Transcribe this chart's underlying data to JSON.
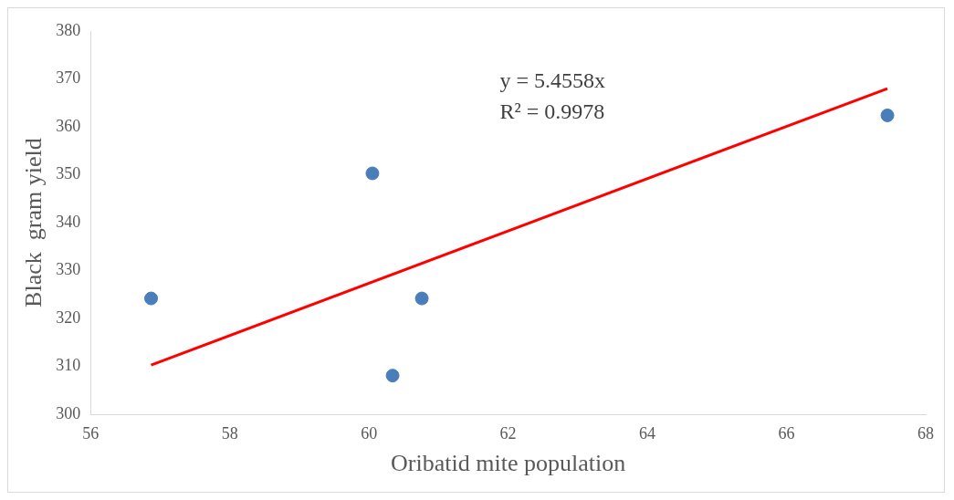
{
  "chart_data": {
    "type": "scatter",
    "xlabel": "Oribatid mite population",
    "ylabel": "Black  gram yield",
    "xlim": [
      56,
      68
    ],
    "xticks": [
      56,
      58,
      60,
      62,
      64,
      66,
      68
    ],
    "ylim": [
      300,
      380
    ],
    "yticks": [
      300,
      310,
      320,
      330,
      340,
      350,
      360,
      370,
      380
    ],
    "grid": false,
    "legend": false,
    "marker": "circle",
    "annotations": [
      "y = 5.4558x",
      "R² = 0.9978"
    ],
    "series": [
      {
        "type": "scatter",
        "color": "#4a7ebb",
        "x": [
          56.87,
          60.05,
          60.34,
          60.76,
          67.45
        ],
        "values": [
          324.2,
          350.3,
          308.1,
          324.2,
          362.4
        ]
      },
      {
        "type": "line",
        "marker": "none",
        "color": "#ff0000",
        "x": [
          56.87,
          67.45
        ],
        "values": [
          310.3,
          368.0
        ]
      }
    ]
  }
}
